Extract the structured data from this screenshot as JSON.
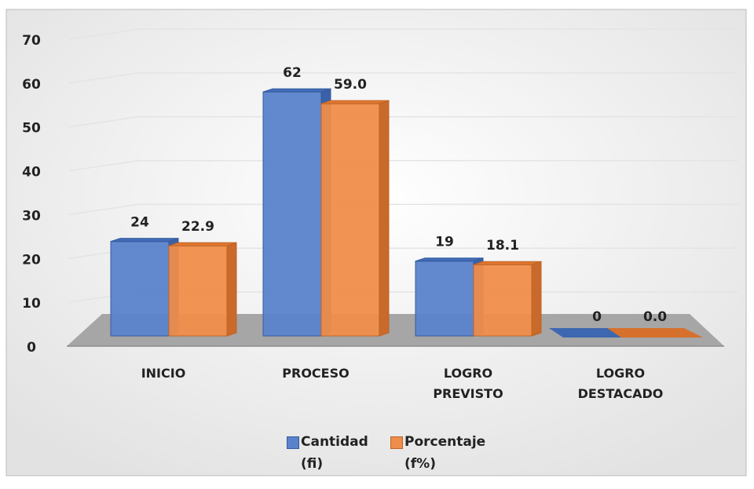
{
  "chart_data": {
    "type": "bar3d",
    "categories": [
      "INICIO",
      "PROCESO",
      "LOGRO PREVISTO",
      "LOGRO DESTACADO"
    ],
    "series": [
      {
        "name": "Cantidad (fi)",
        "color": "#4472c4",
        "values": [
          24,
          62,
          19,
          0
        ]
      },
      {
        "name": "Porcentaje (f%)",
        "color": "#ed7d31",
        "values": [
          22.9,
          59.0,
          18.1,
          0.0
        ],
        "value_labels": [
          "22.9",
          "59.0",
          "18.1",
          "0.0"
        ]
      }
    ],
    "ylim": [
      0,
      70
    ],
    "yticks": [
      0,
      10,
      20,
      30,
      40,
      50,
      60,
      70
    ],
    "grid": true,
    "legend": "bottom"
  }
}
